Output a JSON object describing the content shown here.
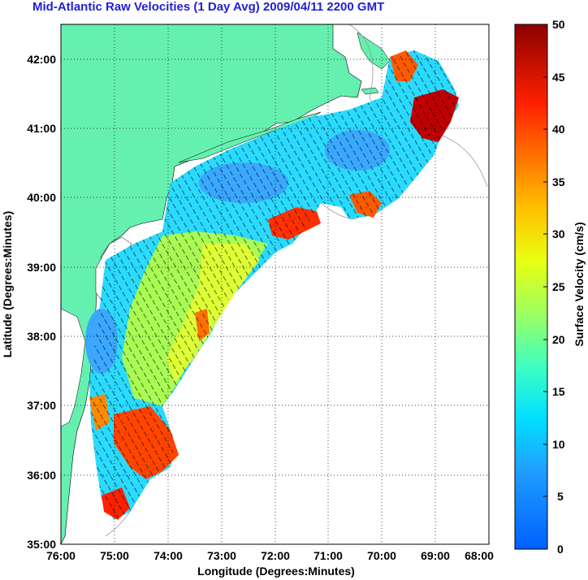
{
  "title": "Mid-Atlantic Raw Velocities (1 Day Avg) 2009/04/11 2200 GMT",
  "map": {
    "xlabel": "Longitude (Degrees:Minutes)",
    "ylabel": "Latitude (Degrees:Minutes)",
    "x_ticks": [
      "76:00",
      "75:00",
      "74:00",
      "73:00",
      "72:00",
      "71:00",
      "70:00",
      "69:00",
      "68:00"
    ],
    "y_ticks": [
      "42:00",
      "41:00",
      "40:00",
      "39:00",
      "38:00",
      "37:00",
      "36:00",
      "35:00"
    ],
    "lon_range": [
      -76,
      -68
    ],
    "lat_range": [
      35,
      42.5
    ],
    "grid": "dotted",
    "land_color": "#66f0b0",
    "water_color": "#ffffff"
  },
  "colorbar": {
    "label": "Surface Velocity (cm/s)",
    "ticks": [
      "50",
      "45",
      "40",
      "35",
      "30",
      "25",
      "20",
      "15",
      "10",
      "5",
      "0"
    ],
    "range": [
      0,
      50
    ],
    "colormap": "jet"
  }
}
